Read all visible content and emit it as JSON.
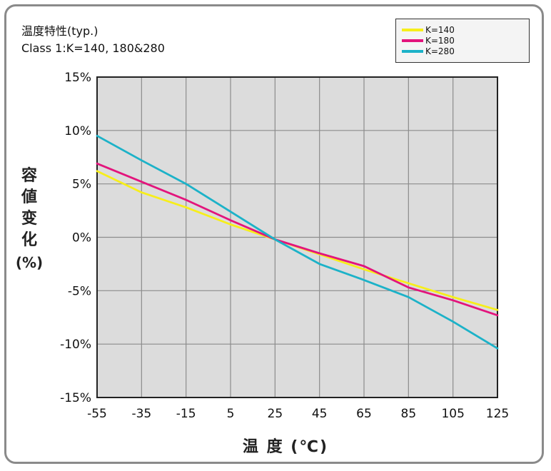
{
  "header": {
    "title": "温度特性(typ.)",
    "subtitle": "Class 1:K=140, 180&280"
  },
  "axis_labels": {
    "y": [
      "容",
      "値",
      "变",
      "化",
      "(%)"
    ],
    "x": "温 度 (℃)"
  },
  "colors": {
    "K140": "#f7ee1a",
    "K180": "#e3147c",
    "K280": "#1cb2c8",
    "plot_bg": "#dcdcdc",
    "grid": "#8c8c8c"
  },
  "chart_data": {
    "type": "line",
    "title": "温度特性(typ.)",
    "subtitle": "Class 1:K=140, 180&280",
    "xlabel": "温度 (℃)",
    "ylabel": "容値变化 (%)",
    "xlim": [
      -55,
      125
    ],
    "ylim": [
      -15,
      15
    ],
    "xticks": [
      -55,
      -35,
      -15,
      5,
      25,
      45,
      65,
      85,
      105,
      125
    ],
    "yticks": [
      15,
      10,
      5,
      0,
      -5,
      -10,
      -15
    ],
    "ytick_labels": [
      "15%",
      "10%",
      "5%",
      "0%",
      "-5%",
      "-10%",
      "-15%"
    ],
    "grid": true,
    "legend_position": "top-right",
    "series": [
      {
        "name": "K=140",
        "color": "#f7ee1a",
        "points": [
          [
            -55,
            6.2
          ],
          [
            -35,
            4.2
          ],
          [
            -15,
            2.8
          ],
          [
            5,
            1.2
          ],
          [
            25,
            -0.2
          ],
          [
            45,
            -1.6
          ],
          [
            65,
            -3.0
          ],
          [
            85,
            -4.3
          ],
          [
            105,
            -5.6
          ],
          [
            125,
            -6.8
          ]
        ]
      },
      {
        "name": "K=180",
        "color": "#e3147c",
        "points": [
          [
            -55,
            6.9
          ],
          [
            -35,
            5.2
          ],
          [
            -15,
            3.5
          ],
          [
            5,
            1.6
          ],
          [
            25,
            -0.2
          ],
          [
            45,
            -1.5
          ],
          [
            65,
            -2.7
          ],
          [
            85,
            -4.7
          ],
          [
            105,
            -5.9
          ],
          [
            125,
            -7.3
          ]
        ]
      },
      {
        "name": "K=280",
        "color": "#1cb2c8",
        "points": [
          [
            -55,
            9.5
          ],
          [
            -35,
            7.2
          ],
          [
            -15,
            5.0
          ],
          [
            5,
            2.4
          ],
          [
            25,
            -0.2
          ],
          [
            45,
            -2.5
          ],
          [
            65,
            -4.0
          ],
          [
            85,
            -5.6
          ],
          [
            105,
            -7.9
          ],
          [
            125,
            -10.4
          ]
        ]
      }
    ]
  }
}
